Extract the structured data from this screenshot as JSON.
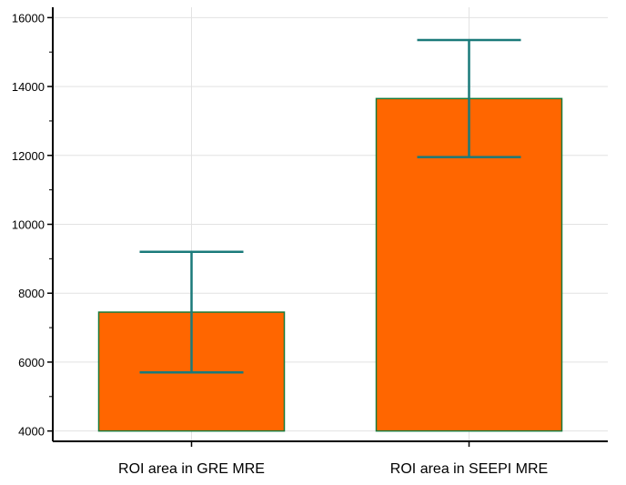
{
  "chart_data": {
    "type": "bar",
    "title": "",
    "xlabel": "",
    "ylabel": "",
    "categories": [
      "ROI area in GRE MRE",
      "ROI area in SEEPI MRE"
    ],
    "values": [
      7450,
      13650
    ],
    "error_low": [
      5700,
      11950
    ],
    "error_high": [
      9200,
      15350
    ],
    "ylim": [
      3700,
      16300
    ],
    "yticks": [
      4000,
      6000,
      8000,
      10000,
      12000,
      14000,
      16000
    ],
    "ytick_labels": [
      "4000",
      "6000",
      "8000",
      "10000",
      "12000",
      "14000",
      "16000"
    ],
    "baseline": 4000,
    "grid": true,
    "legend": "none"
  },
  "colors": {
    "bar_fill": "#ff6600",
    "bar_edge": "#1a7a3a",
    "error_bar": "#1a7a7a",
    "grid": "#e2e2e2",
    "axis": "#000000"
  }
}
